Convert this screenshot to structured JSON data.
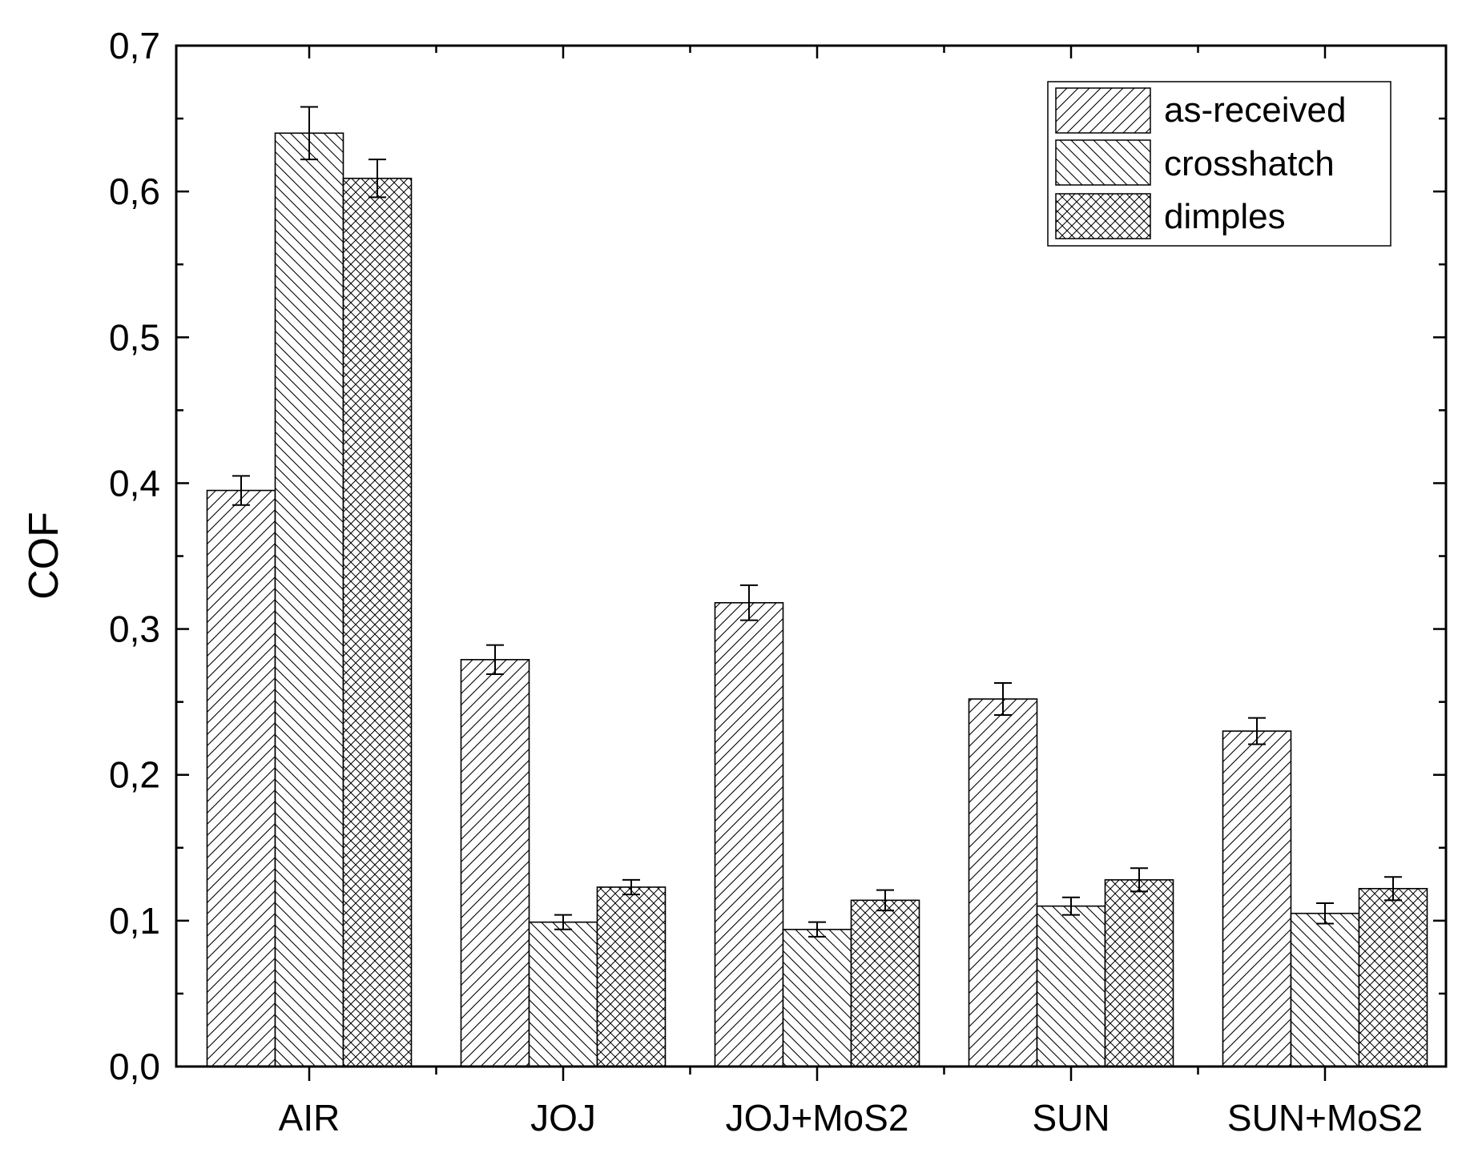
{
  "chart_data": {
    "type": "bar",
    "categories": [
      "AIR",
      "JOJ",
      "JOJ+MoS2",
      "SUN",
      "SUN+MoS2"
    ],
    "series": [
      {
        "name": "as-received",
        "pattern": "diagonal-forward",
        "values": [
          0.395,
          0.279,
          0.318,
          0.252,
          0.23
        ],
        "errors": [
          0.01,
          0.01,
          0.012,
          0.011,
          0.009
        ]
      },
      {
        "name": "crosshatch",
        "pattern": "diagonal-backward",
        "values": [
          0.64,
          0.099,
          0.094,
          0.11,
          0.105
        ],
        "errors": [
          0.018,
          0.005,
          0.005,
          0.006,
          0.007
        ]
      },
      {
        "name": "dimples",
        "pattern": "cross",
        "values": [
          0.609,
          0.123,
          0.114,
          0.128,
          0.122
        ],
        "errors": [
          0.013,
          0.005,
          0.007,
          0.008,
          0.008
        ]
      }
    ],
    "title": "",
    "xlabel": "",
    "ylabel": "COF",
    "ylim": [
      0,
      0.7
    ],
    "y_ticks": [
      "0,0",
      "0,1",
      "0,2",
      "0,3",
      "0,4",
      "0,5",
      "0,6",
      "0,7"
    ],
    "grid": false,
    "legend_position": "top-right",
    "colors": {
      "bar_fill": "#ffffff",
      "hatch": "#000000",
      "axis": "#000000"
    }
  }
}
